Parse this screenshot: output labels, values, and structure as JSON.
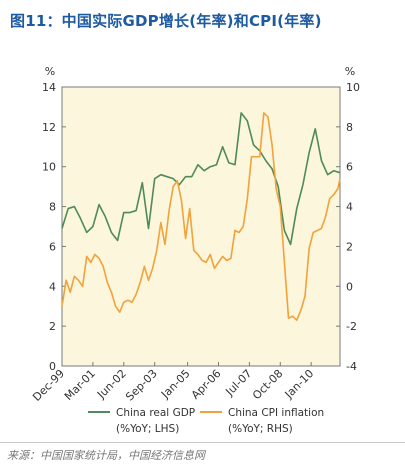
{
  "title": "图11：中国实际GDP增长(年率)和CPI(年率)",
  "source": "来源：中国国家统计局，中国经济信息网",
  "colors": {
    "title": "#1d5aa0",
    "plot_background": "#fbf6dc",
    "gdp_line": "#4f8a5a",
    "cpi_line": "#f2a23a"
  },
  "chart_data": {
    "type": "line",
    "title": "",
    "left_unit": "%",
    "right_unit": "%",
    "x_tick_labels": [
      "Dec-99",
      "Mar-01",
      "Jun-02",
      "Sep-03",
      "Jan-05",
      "Apr-06",
      "Jul-07",
      "Oct-08",
      "Jan-10"
    ],
    "x_tick_positions": [
      "1999-12",
      "2001-03",
      "2002-06",
      "2003-09",
      "2005-01",
      "2006-04",
      "2007-07",
      "2008-10",
      "2010-01"
    ],
    "x_range": [
      "1999-12",
      "2011-03"
    ],
    "y_left": {
      "range": [
        0,
        14
      ],
      "ticks": [
        0,
        2,
        4,
        6,
        8,
        10,
        12,
        14
      ]
    },
    "y_right": {
      "range": [
        -4,
        10
      ],
      "ticks": [
        -4,
        -2,
        0,
        2,
        4,
        6,
        8,
        10
      ]
    },
    "grid": false,
    "legend_position": "bottom",
    "series": [
      {
        "name": "China real GDP",
        "sub": "(%YoY; LHS)",
        "axis": "left",
        "x": [
          "1999-12",
          "2000-03",
          "2000-06",
          "2000-09",
          "2000-12",
          "2001-03",
          "2001-06",
          "2001-09",
          "2001-12",
          "2002-03",
          "2002-06",
          "2002-09",
          "2002-12",
          "2003-03",
          "2003-06",
          "2003-09",
          "2003-12",
          "2004-03",
          "2004-06",
          "2004-09",
          "2004-12",
          "2005-03",
          "2005-06",
          "2005-09",
          "2005-12",
          "2006-03",
          "2006-06",
          "2006-09",
          "2006-12",
          "2007-03",
          "2007-06",
          "2007-09",
          "2007-12",
          "2008-03",
          "2008-06",
          "2008-09",
          "2008-12",
          "2009-03",
          "2009-06",
          "2009-09",
          "2009-12",
          "2010-03",
          "2010-06",
          "2010-09",
          "2010-12",
          "2011-03"
        ],
        "values": [
          6.9,
          7.9,
          8.0,
          7.4,
          6.7,
          7.0,
          8.1,
          7.5,
          6.7,
          6.3,
          7.7,
          7.7,
          7.8,
          9.2,
          6.9,
          9.4,
          9.6,
          9.5,
          9.4,
          9.1,
          9.5,
          9.5,
          10.1,
          9.8,
          10.0,
          10.1,
          11.0,
          10.2,
          10.1,
          12.7,
          12.3,
          11.1,
          10.8,
          10.3,
          9.9,
          9.0,
          6.8,
          6.1,
          7.9,
          9.1,
          10.7,
          11.9,
          10.3,
          9.6,
          9.8,
          9.7
        ]
      },
      {
        "name": "China CPI inflation",
        "sub": "(%YoY; RHS)",
        "axis": "right",
        "x": [
          "1999-12",
          "2000-02",
          "2000-04",
          "2000-06",
          "2000-08",
          "2000-10",
          "2000-12",
          "2001-02",
          "2001-04",
          "2001-06",
          "2001-08",
          "2001-10",
          "2001-12",
          "2002-02",
          "2002-04",
          "2002-06",
          "2002-08",
          "2002-10",
          "2002-12",
          "2003-02",
          "2003-04",
          "2003-06",
          "2003-08",
          "2003-10",
          "2003-12",
          "2004-02",
          "2004-04",
          "2004-06",
          "2004-08",
          "2004-10",
          "2004-12",
          "2005-02",
          "2005-04",
          "2005-06",
          "2005-08",
          "2005-10",
          "2005-12",
          "2006-02",
          "2006-04",
          "2006-06",
          "2006-08",
          "2006-10",
          "2006-12",
          "2007-02",
          "2007-04",
          "2007-06",
          "2007-08",
          "2007-10",
          "2007-12",
          "2008-02",
          "2008-04",
          "2008-06",
          "2008-08",
          "2008-10",
          "2008-12",
          "2009-02",
          "2009-04",
          "2009-06",
          "2009-08",
          "2009-10",
          "2009-12",
          "2010-02",
          "2010-04",
          "2010-06",
          "2010-08",
          "2010-10",
          "2010-12",
          "2011-02",
          "2011-03"
        ],
        "values": [
          -1.0,
          0.3,
          -0.3,
          0.5,
          0.3,
          0.0,
          1.5,
          1.2,
          1.6,
          1.4,
          1.0,
          0.2,
          -0.3,
          -1.0,
          -1.3,
          -0.8,
          -0.7,
          -0.8,
          -0.4,
          0.2,
          1.0,
          0.3,
          0.9,
          1.8,
          3.2,
          2.1,
          3.8,
          5.0,
          5.3,
          4.3,
          2.4,
          3.9,
          1.8,
          1.6,
          1.3,
          1.2,
          1.6,
          0.9,
          1.2,
          1.5,
          1.3,
          1.4,
          2.8,
          2.7,
          3.0,
          4.4,
          6.5,
          6.5,
          6.5,
          8.7,
          8.5,
          7.1,
          4.9,
          4.0,
          1.2,
          -1.6,
          -1.5,
          -1.7,
          -1.2,
          -0.5,
          1.9,
          2.7,
          2.8,
          2.9,
          3.5,
          4.4,
          4.6,
          4.9,
          5.4
        ]
      }
    ]
  }
}
